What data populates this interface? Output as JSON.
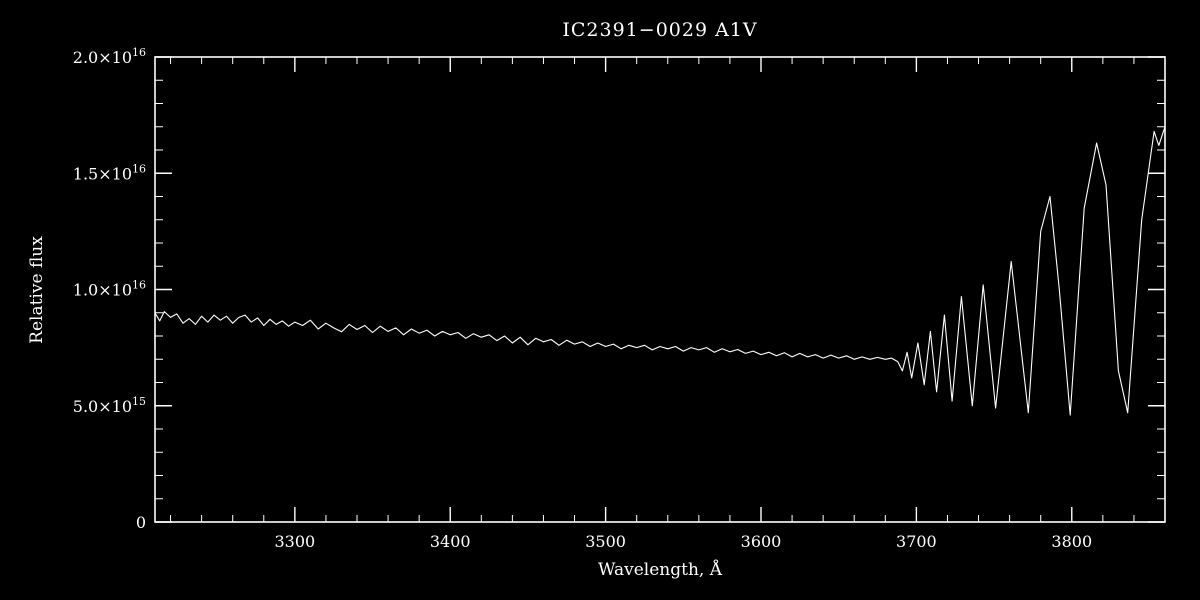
{
  "chart_data": {
    "type": "line",
    "title": "IC2391−0029  A1V",
    "xlabel": "Wavelength, Å",
    "ylabel": "Relative flux",
    "xlim": [
      3210,
      3860
    ],
    "ylim_1e15": [
      0,
      20
    ],
    "y_values_unit": "×10^15 (relative flux)",
    "x_ticks": [
      3300,
      3400,
      3500,
      3600,
      3700,
      3800
    ],
    "x_minor": 20,
    "y_ticks": [
      0,
      5,
      10,
      15,
      20
    ],
    "y_tick_labels": [
      "0",
      "5.0×10^15",
      "1.0×10^16",
      "1.5×10^16",
      "2.0×10^16"
    ],
    "y_minor": 1,
    "legend": "none",
    "grid": false,
    "line_color": "#ffffff",
    "background_color": "#000000",
    "points": [
      [
        3210,
        9.0
      ],
      [
        3213,
        8.65
      ],
      [
        3216,
        9.05
      ],
      [
        3220,
        8.8
      ],
      [
        3224,
        8.95
      ],
      [
        3228,
        8.55
      ],
      [
        3232,
        8.75
      ],
      [
        3236,
        8.5
      ],
      [
        3240,
        8.85
      ],
      [
        3244,
        8.6
      ],
      [
        3248,
        8.9
      ],
      [
        3252,
        8.68
      ],
      [
        3256,
        8.85
      ],
      [
        3260,
        8.55
      ],
      [
        3264,
        8.8
      ],
      [
        3268,
        8.9
      ],
      [
        3272,
        8.6
      ],
      [
        3276,
        8.78
      ],
      [
        3280,
        8.45
      ],
      [
        3284,
        8.72
      ],
      [
        3288,
        8.5
      ],
      [
        3292,
        8.65
      ],
      [
        3296,
        8.42
      ],
      [
        3300,
        8.6
      ],
      [
        3305,
        8.45
      ],
      [
        3310,
        8.68
      ],
      [
        3315,
        8.3
      ],
      [
        3320,
        8.55
      ],
      [
        3325,
        8.35
      ],
      [
        3330,
        8.18
      ],
      [
        3335,
        8.5
      ],
      [
        3340,
        8.28
      ],
      [
        3345,
        8.45
      ],
      [
        3350,
        8.15
      ],
      [
        3355,
        8.42
      ],
      [
        3360,
        8.2
      ],
      [
        3365,
        8.35
      ],
      [
        3370,
        8.05
      ],
      [
        3375,
        8.3
      ],
      [
        3380,
        8.12
      ],
      [
        3385,
        8.25
      ],
      [
        3390,
        8.0
      ],
      [
        3395,
        8.2
      ],
      [
        3400,
        8.05
      ],
      [
        3405,
        8.15
      ],
      [
        3410,
        7.9
      ],
      [
        3415,
        8.1
      ],
      [
        3420,
        7.95
      ],
      [
        3425,
        8.05
      ],
      [
        3430,
        7.8
      ],
      [
        3435,
        8.0
      ],
      [
        3440,
        7.7
      ],
      [
        3445,
        7.95
      ],
      [
        3450,
        7.62
      ],
      [
        3455,
        7.9
      ],
      [
        3460,
        7.75
      ],
      [
        3465,
        7.85
      ],
      [
        3470,
        7.6
      ],
      [
        3475,
        7.82
      ],
      [
        3480,
        7.65
      ],
      [
        3485,
        7.75
      ],
      [
        3490,
        7.55
      ],
      [
        3495,
        7.7
      ],
      [
        3500,
        7.55
      ],
      [
        3505,
        7.65
      ],
      [
        3510,
        7.45
      ],
      [
        3515,
        7.6
      ],
      [
        3520,
        7.5
      ],
      [
        3525,
        7.6
      ],
      [
        3530,
        7.4
      ],
      [
        3535,
        7.55
      ],
      [
        3540,
        7.45
      ],
      [
        3545,
        7.55
      ],
      [
        3550,
        7.35
      ],
      [
        3555,
        7.5
      ],
      [
        3560,
        7.4
      ],
      [
        3565,
        7.5
      ],
      [
        3570,
        7.3
      ],
      [
        3575,
        7.45
      ],
      [
        3580,
        7.32
      ],
      [
        3585,
        7.42
      ],
      [
        3590,
        7.25
      ],
      [
        3595,
        7.35
      ],
      [
        3600,
        7.2
      ],
      [
        3605,
        7.3
      ],
      [
        3610,
        7.15
      ],
      [
        3615,
        7.28
      ],
      [
        3620,
        7.1
      ],
      [
        3625,
        7.25
      ],
      [
        3630,
        7.1
      ],
      [
        3635,
        7.2
      ],
      [
        3640,
        7.05
      ],
      [
        3645,
        7.18
      ],
      [
        3650,
        7.05
      ],
      [
        3655,
        7.15
      ],
      [
        3660,
        7.0
      ],
      [
        3665,
        7.1
      ],
      [
        3670,
        7.0
      ],
      [
        3675,
        7.08
      ],
      [
        3680,
        7.0
      ],
      [
        3684,
        7.05
      ],
      [
        3688,
        6.9
      ],
      [
        3691,
        6.5
      ],
      [
        3694,
        7.3
      ],
      [
        3697,
        6.2
      ],
      [
        3701,
        7.7
      ],
      [
        3705,
        5.9
      ],
      [
        3709,
        8.2
      ],
      [
        3713,
        5.6
      ],
      [
        3718,
        8.9
      ],
      [
        3723,
        5.2
      ],
      [
        3729,
        9.7
      ],
      [
        3736,
        5.0
      ],
      [
        3743,
        10.2
      ],
      [
        3751,
        4.9
      ],
      [
        3761,
        11.2
      ],
      [
        3772,
        4.7
      ],
      [
        3780,
        12.5
      ],
      [
        3786,
        14.0
      ],
      [
        3792,
        10.0
      ],
      [
        3799,
        4.6
      ],
      [
        3808,
        13.5
      ],
      [
        3816,
        16.3
      ],
      [
        3822,
        14.5
      ],
      [
        3830,
        6.5
      ],
      [
        3836,
        4.7
      ],
      [
        3845,
        13.0
      ],
      [
        3853,
        16.8
      ],
      [
        3856,
        16.2
      ],
      [
        3860,
        17.0
      ]
    ]
  }
}
